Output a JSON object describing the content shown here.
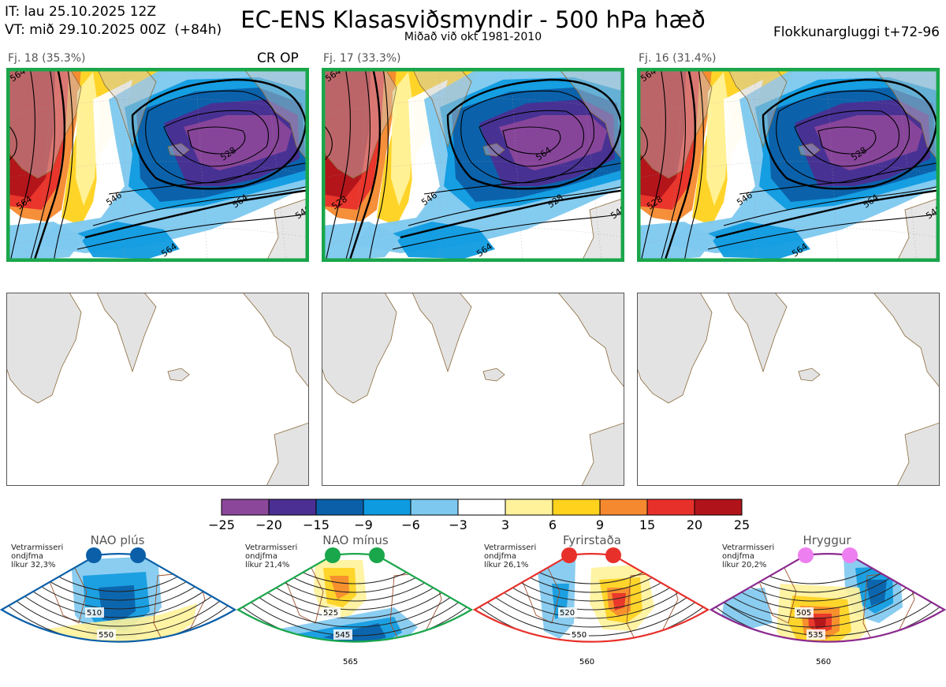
{
  "header": {
    "it": "IT: lau 25.10.2025 12Z",
    "vt": "VT: mið 29.10.2025 00Z  (+84h)",
    "title": "EC-ENS Klasasviðsmyndir - 500 hPa hæð",
    "subtitle": "Miðað við okt 1981-2010",
    "window": "Flokkunargluggi t+72-96"
  },
  "clusters": [
    {
      "label": "Fj. 18 (35.3%)",
      "tag": "CR OP",
      "border": "#1aa64b",
      "contours": [
        "564",
        "546",
        "528",
        "564",
        "546",
        "564",
        "564"
      ]
    },
    {
      "label": "Fj. 17 (33.3%)",
      "tag": "",
      "border": "#1aa64b",
      "contours": [
        "528",
        "546",
        "564",
        "528",
        "546",
        "564",
        "564"
      ]
    },
    {
      "label": "Fj. 16 (31.4%)",
      "tag": "",
      "border": "#1aa64b",
      "contours": [
        "528",
        "546",
        "528",
        "564",
        "546",
        "564",
        "564"
      ]
    }
  ],
  "colorbar": {
    "ticks": [
      "−25",
      "−20",
      "−15",
      "−9",
      "−6",
      "−3",
      "3",
      "6",
      "9",
      "15",
      "20",
      "25"
    ],
    "colors": [
      "#8b479a",
      "#4b2f92",
      "#0b5fa8",
      "#0f9be0",
      "#7dc8ef",
      "#ffffff",
      "#fff29a",
      "#ffd21e",
      "#f5892f",
      "#e8302b",
      "#b0141a"
    ]
  },
  "regimes": [
    {
      "title": "NAO plús",
      "note": "Vetrarmisseri\nondjfma\nlíkur 32,3%",
      "color": "#0b5fa8",
      "dot": "#0b5fa8",
      "contours": [
        "510",
        "550"
      ]
    },
    {
      "title": "NAO mínus",
      "note": "Vetrarmisseri\nondjfma\nlíkur 21,4%",
      "color": "#1aa64b",
      "dot": "#1aa64b",
      "contours": [
        "525",
        "545",
        "565"
      ]
    },
    {
      "title": "Fyrirstaða",
      "note": "Vetrarmisseri\nondjfma\nlíkur 26,1%",
      "color": "#e8302b",
      "dot": "#e8302b",
      "contours": [
        "520",
        "550",
        "560"
      ]
    },
    {
      "title": "Hryggur",
      "note": "Vetrarmisseri\nondjfma\nlíkur 20,2%",
      "color": "#8b2a8f",
      "dot": "#ee7ff0",
      "contours": [
        "505",
        "535",
        "560"
      ]
    }
  ]
}
